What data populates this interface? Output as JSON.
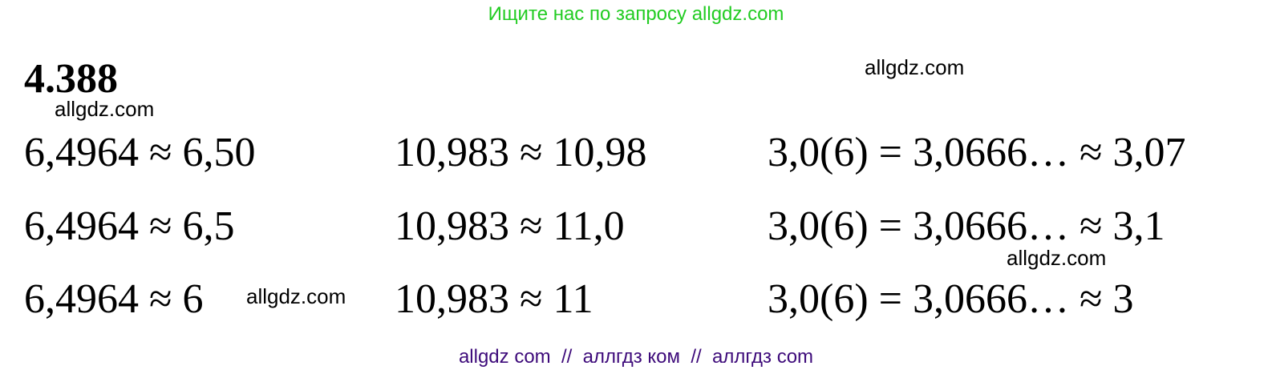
{
  "header": {
    "text": "Ищите нас по запросу allgdz.com",
    "color": "#22cc22"
  },
  "title": "4.388",
  "rows": [
    [
      "6,4964 ≈ 6,50",
      "10,983 ≈ 10,98",
      "3,0(6) = 3,0666… ≈ 3,07"
    ],
    [
      "6,4964 ≈ 6,5",
      "10,983 ≈ 11,0",
      "3,0(6) = 3,0666… ≈ 3,1"
    ],
    [
      "6,4964 ≈ 6",
      "10,983 ≈ 11",
      "3,0(6) = 3,0666… ≈ 3"
    ]
  ],
  "watermarks": [
    "allgdz.com",
    "allgdz.com",
    "allgdz.com",
    "allgdz.com"
  ],
  "footer": {
    "text": "allgdz com  //  аллгдз ком  //  аллгдз com",
    "color": "#3d0a7a"
  }
}
